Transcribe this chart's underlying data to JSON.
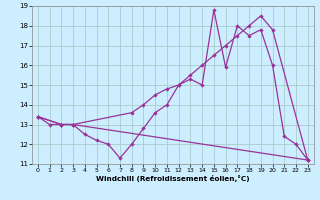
{
  "xlabel": "Windchill (Refroidissement éolien,°C)",
  "bg_color": "#cceeff",
  "line_color": "#993399",
  "grid_color": "#aacccc",
  "xlim": [
    -0.5,
    23.5
  ],
  "ylim": [
    11,
    19
  ],
  "xticks": [
    0,
    1,
    2,
    3,
    4,
    5,
    6,
    7,
    8,
    9,
    10,
    11,
    12,
    13,
    14,
    15,
    16,
    17,
    18,
    19,
    20,
    21,
    22,
    23
  ],
  "yticks": [
    11,
    12,
    13,
    14,
    15,
    16,
    17,
    18,
    19
  ],
  "series": [
    {
      "x": [
        0,
        1,
        2,
        3,
        4,
        5,
        6,
        7,
        8,
        9,
        10,
        11,
        12,
        13,
        14,
        15,
        16,
        17,
        18,
        19,
        20,
        21,
        22,
        23
      ],
      "y": [
        13.4,
        13.0,
        13.0,
        13.0,
        12.5,
        12.2,
        12.0,
        11.3,
        12.0,
        12.8,
        13.6,
        14.0,
        15.0,
        15.3,
        15.0,
        18.8,
        15.9,
        18.0,
        17.5,
        17.8,
        16.0,
        12.4,
        12.0,
        11.2
      ]
    },
    {
      "x": [
        0,
        2,
        3,
        8,
        9,
        10,
        11,
        12,
        13,
        14,
        15,
        16,
        17,
        18,
        19,
        20,
        23
      ],
      "y": [
        13.4,
        13.0,
        13.0,
        13.6,
        14.0,
        14.5,
        14.8,
        15.0,
        15.5,
        16.0,
        16.5,
        17.0,
        17.5,
        18.0,
        18.5,
        17.8,
        11.2
      ]
    },
    {
      "x": [
        0,
        2,
        3,
        23
      ],
      "y": [
        13.4,
        13.0,
        13.0,
        11.2
      ]
    }
  ]
}
